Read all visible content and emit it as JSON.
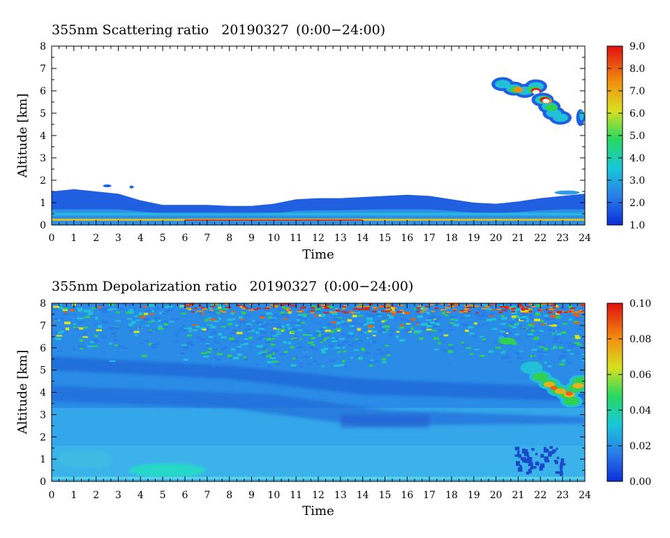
{
  "chart_data": [
    {
      "type": "heatmap",
      "title": "355nm Scattering ratio",
      "date": "20190327",
      "time_range": "(0:00−24:00)",
      "xlabel": "Time",
      "ylabel": "Altitude [km]",
      "xlim": [
        0,
        24
      ],
      "ylim": [
        0,
        8
      ],
      "x_ticks": [
        "0",
        "1",
        "2",
        "3",
        "4",
        "5",
        "6",
        "7",
        "8",
        "9",
        "10",
        "11",
        "12",
        "13",
        "14",
        "15",
        "16",
        "17",
        "18",
        "19",
        "20",
        "21",
        "22",
        "23",
        "24"
      ],
      "y_ticks": [
        "0",
        "1",
        "2",
        "3",
        "4",
        "5",
        "6",
        "7",
        "8"
      ],
      "colorbar": {
        "range": [
          1.0,
          9.0
        ],
        "tick_labels": [
          "1.0",
          "2.0",
          "3.0",
          "4.0",
          "5.0",
          "6.0",
          "7.0",
          "8.0",
          "9.0"
        ],
        "colormap": [
          "#0c2ed8",
          "#2a7de8",
          "#19c8d8",
          "#28d860",
          "#d8e020",
          "#f09010",
          "#e01010"
        ]
      },
      "layers": [
        {
          "desc": "boundary layer top",
          "x": [
            0,
            1,
            2,
            3,
            4,
            5,
            6,
            7,
            8,
            9,
            10,
            11,
            12,
            13,
            14,
            15,
            16,
            17,
            18,
            19,
            20,
            21,
            22,
            23,
            24
          ],
          "top_km": [
            1.5,
            1.6,
            1.5,
            1.4,
            1.1,
            0.9,
            0.9,
            0.9,
            0.85,
            0.85,
            0.95,
            1.15,
            1.2,
            1.2,
            1.25,
            1.3,
            1.35,
            1.3,
            1.15,
            1.0,
            0.95,
            1.05,
            1.2,
            1.3,
            1.4
          ],
          "value": 2.0
        },
        {
          "desc": "cloud near 22h",
          "x_range": [
            20.2,
            23.4
          ],
          "alt_range_km": [
            4.7,
            6.3
          ],
          "peak_value": 9.0
        }
      ]
    },
    {
      "type": "heatmap",
      "title": "355nm Depolarization ratio",
      "date": "20190327",
      "time_range": "(0:00−24:00)",
      "xlabel": "Time",
      "ylabel": "Altitude [km]",
      "xlim": [
        0,
        24
      ],
      "ylim": [
        0,
        8
      ],
      "x_ticks": [
        "0",
        "1",
        "2",
        "3",
        "4",
        "5",
        "6",
        "7",
        "8",
        "9",
        "10",
        "11",
        "12",
        "13",
        "14",
        "15",
        "16",
        "17",
        "18",
        "19",
        "20",
        "21",
        "22",
        "23",
        "24"
      ],
      "y_ticks": [
        "0",
        "1",
        "2",
        "3",
        "4",
        "5",
        "6",
        "7",
        "8"
      ],
      "colorbar": {
        "range": [
          0.0,
          0.1
        ],
        "tick_labels": [
          "0.00",
          "0.02",
          "0.04",
          "0.06",
          "0.08",
          "0.10"
        ],
        "colormap": [
          "#0c2ed8",
          "#2a7de8",
          "#19c8d8",
          "#28d860",
          "#d8e020",
          "#f09010",
          "#e01010"
        ]
      },
      "features": [
        {
          "desc": "noisy upper region",
          "alt_range_km": [
            5.5,
            8.0
          ],
          "value_range": [
            0.01,
            0.1
          ]
        },
        {
          "desc": "cloud depolarization",
          "x_range": [
            21.5,
            24
          ],
          "alt_range_km": [
            3.5,
            5.5
          ],
          "peak_value": 0.08
        },
        {
          "desc": "low layer",
          "alt_range_km": [
            0,
            2
          ],
          "value": 0.02
        }
      ]
    }
  ]
}
